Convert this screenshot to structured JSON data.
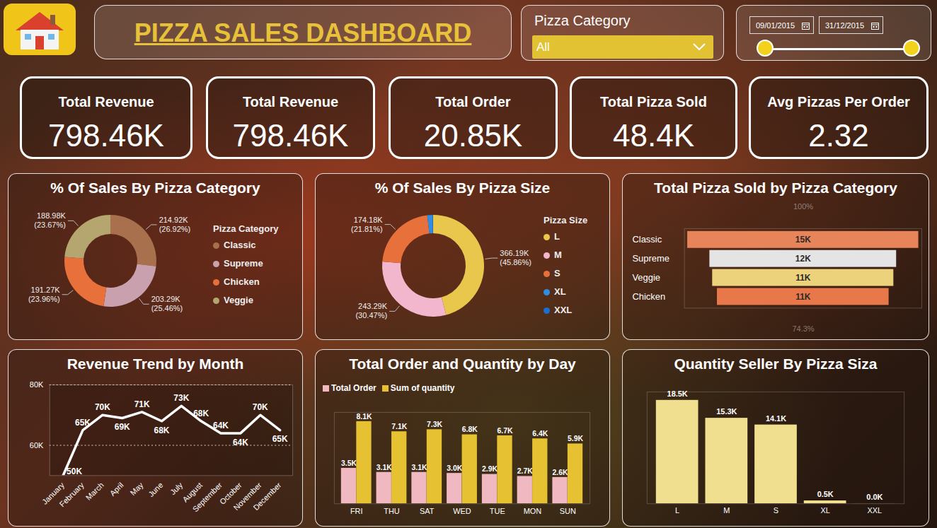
{
  "header": {
    "title": "PIZZA SALES DASHBOARD"
  },
  "filters": {
    "category": {
      "label": "Pizza Category",
      "selected": "All"
    },
    "date_range": {
      "start": "09/01/2015",
      "end": "31/12/2015"
    }
  },
  "kpis": [
    {
      "title": "Total Revenue",
      "value": "798.46K"
    },
    {
      "title": "Total Revenue",
      "value": "798.46K"
    },
    {
      "title": "Total Order",
      "value": "20.85K"
    },
    {
      "title": "Total Pizza Sold",
      "value": "48.4K"
    },
    {
      "title": "Avg Pizzas Per Order",
      "value": "2.32"
    }
  ],
  "chart_data": [
    {
      "type": "donut",
      "title": "% Of Sales By Pizza Category",
      "legend_title": "Pizza Category",
      "categories": [
        "Classic",
        "Supreme",
        "Chicken",
        "Veggie"
      ],
      "values": [
        214920,
        203290,
        191270,
        188980
      ],
      "value_labels": [
        "214.92K (26.92%)",
        "203.29K (25.46%)",
        "191.27K (23.96%)",
        "188.98K (23.67%)"
      ],
      "colors": [
        "#a8704c",
        "#c8a0ae",
        "#e8703a",
        "#b5a56e"
      ],
      "legend": "right",
      "data_labels": true
    },
    {
      "type": "donut",
      "title": "% Of Sales By Pizza Size",
      "legend_title": "Pizza Size",
      "categories": [
        "L",
        "M",
        "S",
        "XL",
        "XXL"
      ],
      "values": [
        366190,
        243290,
        174180,
        13850,
        950
      ],
      "value_labels": [
        "366.19K (45.86%)",
        "243.29K (30.47%)",
        "174.18K (21.81%)",
        null,
        null
      ],
      "colors": [
        "#e9c74c",
        "#f2b6cd",
        "#e8703a",
        "#2f8de4",
        "#1a6fd0"
      ],
      "legend": "right",
      "data_labels": true
    },
    {
      "type": "funnel",
      "title": "Total Pizza Sold by Pizza Category",
      "orientation": "horizontal",
      "categories": [
        "Classic",
        "Supreme",
        "Veggie",
        "Chicken"
      ],
      "values": [
        14600,
        11800,
        11450,
        10850
      ],
      "value_labels": [
        "15K",
        "12K",
        "11K",
        "11K"
      ],
      "colors": [
        "#e8845a",
        "#e4e4e4",
        "#ecd27a",
        "#e8784a"
      ],
      "xlim": [
        0,
        15000
      ],
      "tick_labels": "y",
      "annotations": [
        "100%",
        "74.3%"
      ],
      "data_labels": true
    },
    {
      "type": "line",
      "title": "Revenue Trend by Month",
      "categories": [
        "January",
        "February",
        "March",
        "April",
        "May",
        "June",
        "July",
        "August",
        "September",
        "October",
        "November",
        "December"
      ],
      "values": [
        50000,
        65000,
        70000,
        69000,
        71000,
        68000,
        73000,
        68000,
        64000,
        64000,
        70000,
        65000
      ],
      "value_labels": [
        "50K",
        "65K",
        "70K",
        "69K",
        "71K",
        "68K",
        "73K",
        "68K",
        "64K",
        "64K",
        "70K",
        "65K"
      ],
      "color": "#ffffff",
      "ylim": [
        50000,
        80000
      ],
      "yticks": [
        {
          "value": 60000,
          "label": "60K"
        },
        {
          "value": 80000,
          "label": "80K"
        }
      ],
      "grid": true,
      "data_labels": true
    },
    {
      "type": "bar",
      "title": "Total Order and Quantity by Day",
      "categories": [
        "FRI",
        "THU",
        "SAT",
        "WED",
        "TUE",
        "MON",
        "SUN"
      ],
      "series": [
        {
          "name": "Total Order",
          "color": "#f0b8c0",
          "values": [
            3500,
            3100,
            3100,
            3000,
            2900,
            2700,
            2600
          ],
          "value_labels": [
            "3.5K",
            "3.1K",
            "3.1K",
            "3.0K",
            "2.9K",
            "2.7K",
            "2.6K"
          ]
        },
        {
          "name": "Sum of quantity",
          "color": "#e6c232",
          "values": [
            8100,
            7100,
            7300,
            6800,
            6700,
            6400,
            5900
          ],
          "value_labels": [
            "8.1K",
            "7.1K",
            "7.3K",
            "6.8K",
            "6.7K",
            "6.4K",
            "5.9K"
          ]
        }
      ],
      "ylim": [
        0,
        9000
      ],
      "tick_labels": "x",
      "legend": "top-left",
      "data_labels": true
    },
    {
      "type": "bar",
      "title": "Quantity Seller By Pizza Siza",
      "categories": [
        "L",
        "M",
        "S",
        "XL",
        "XXL"
      ],
      "values": [
        18500,
        15300,
        14100,
        530,
        28
      ],
      "value_labels": [
        "18.5K",
        "15.3K",
        "14.1K",
        "0.5K",
        "0.0K"
      ],
      "color": "#f0df8f",
      "ylim": [
        0,
        20000
      ],
      "tick_labels": "x",
      "data_labels": true
    }
  ]
}
